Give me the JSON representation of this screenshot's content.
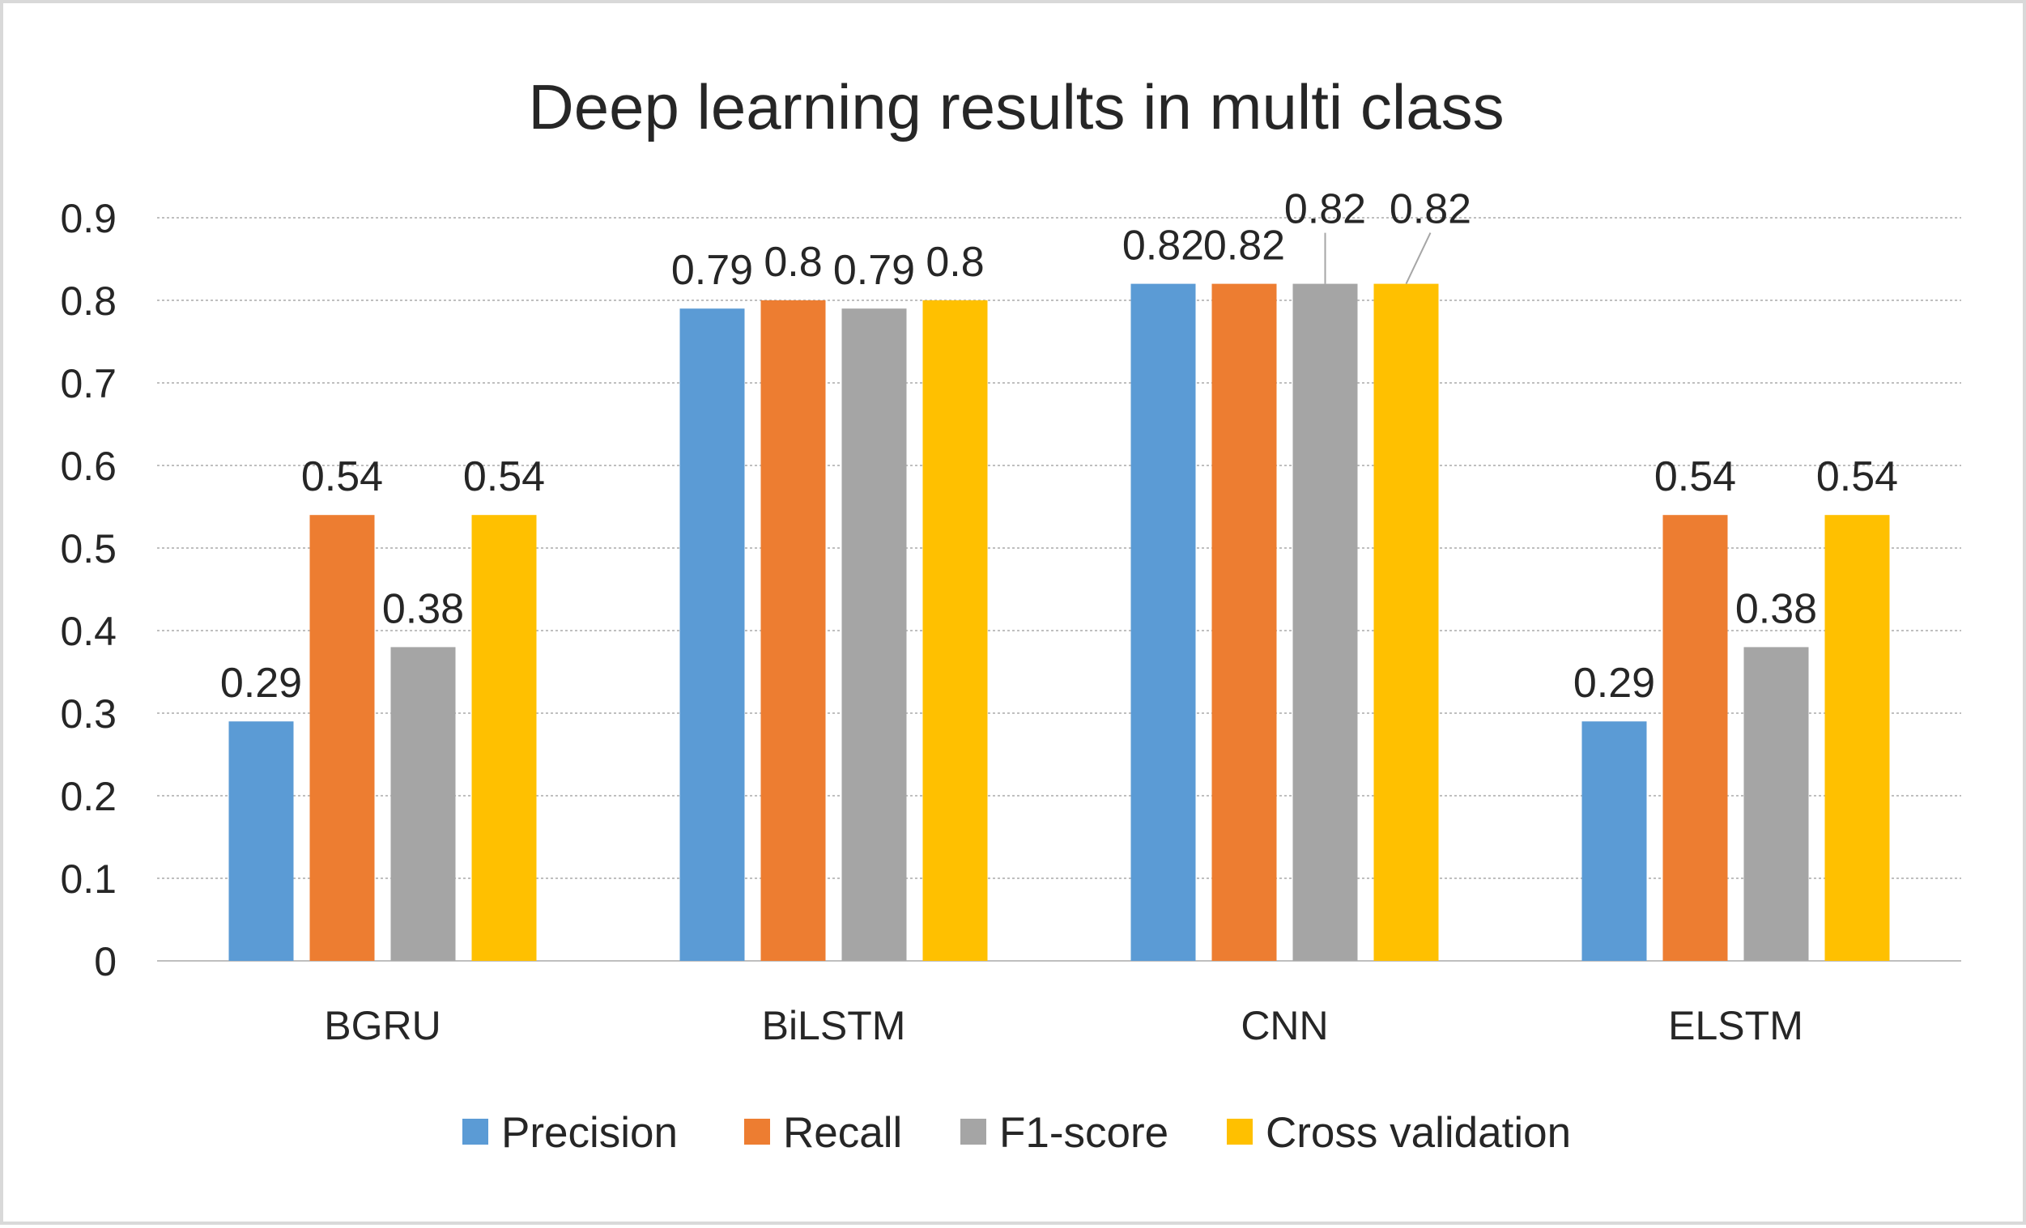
{
  "chart_data": {
    "type": "bar",
    "title": "Deep learning results in multi class",
    "xlabel": "",
    "ylabel": "",
    "ylim": [
      0,
      0.9
    ],
    "y_ticks": [
      "0",
      "0.1",
      "0.2",
      "0.3",
      "0.4",
      "0.5",
      "0.6",
      "0.7",
      "0.8",
      "0.9"
    ],
    "grid": true,
    "legend_position": "bottom",
    "categories": [
      "BGRU",
      "BiLSTM",
      "CNN",
      "ELSTM"
    ],
    "series": [
      {
        "name": "Precision",
        "color": "#5b9bd5",
        "values": [
          0.29,
          0.79,
          0.82,
          0.29
        ],
        "labels": [
          "0.29",
          "0.79",
          "0.82",
          "0.29"
        ]
      },
      {
        "name": "Recall",
        "color": "#ed7d31",
        "values": [
          0.54,
          0.8,
          0.82,
          0.54
        ],
        "labels": [
          "0.54",
          "0.8",
          "0.82",
          "0.54"
        ]
      },
      {
        "name": "F1-score",
        "color": "#a5a5a5",
        "values": [
          0.38,
          0.79,
          0.82,
          0.38
        ],
        "labels": [
          "0.38",
          "0.79",
          "0.82",
          "0.38"
        ]
      },
      {
        "name": "Cross validation",
        "color": "#ffc000",
        "values": [
          0.54,
          0.8,
          0.82,
          0.54
        ],
        "labels": [
          "0.54",
          "0.8",
          "0.82",
          "0.54"
        ]
      }
    ]
  }
}
